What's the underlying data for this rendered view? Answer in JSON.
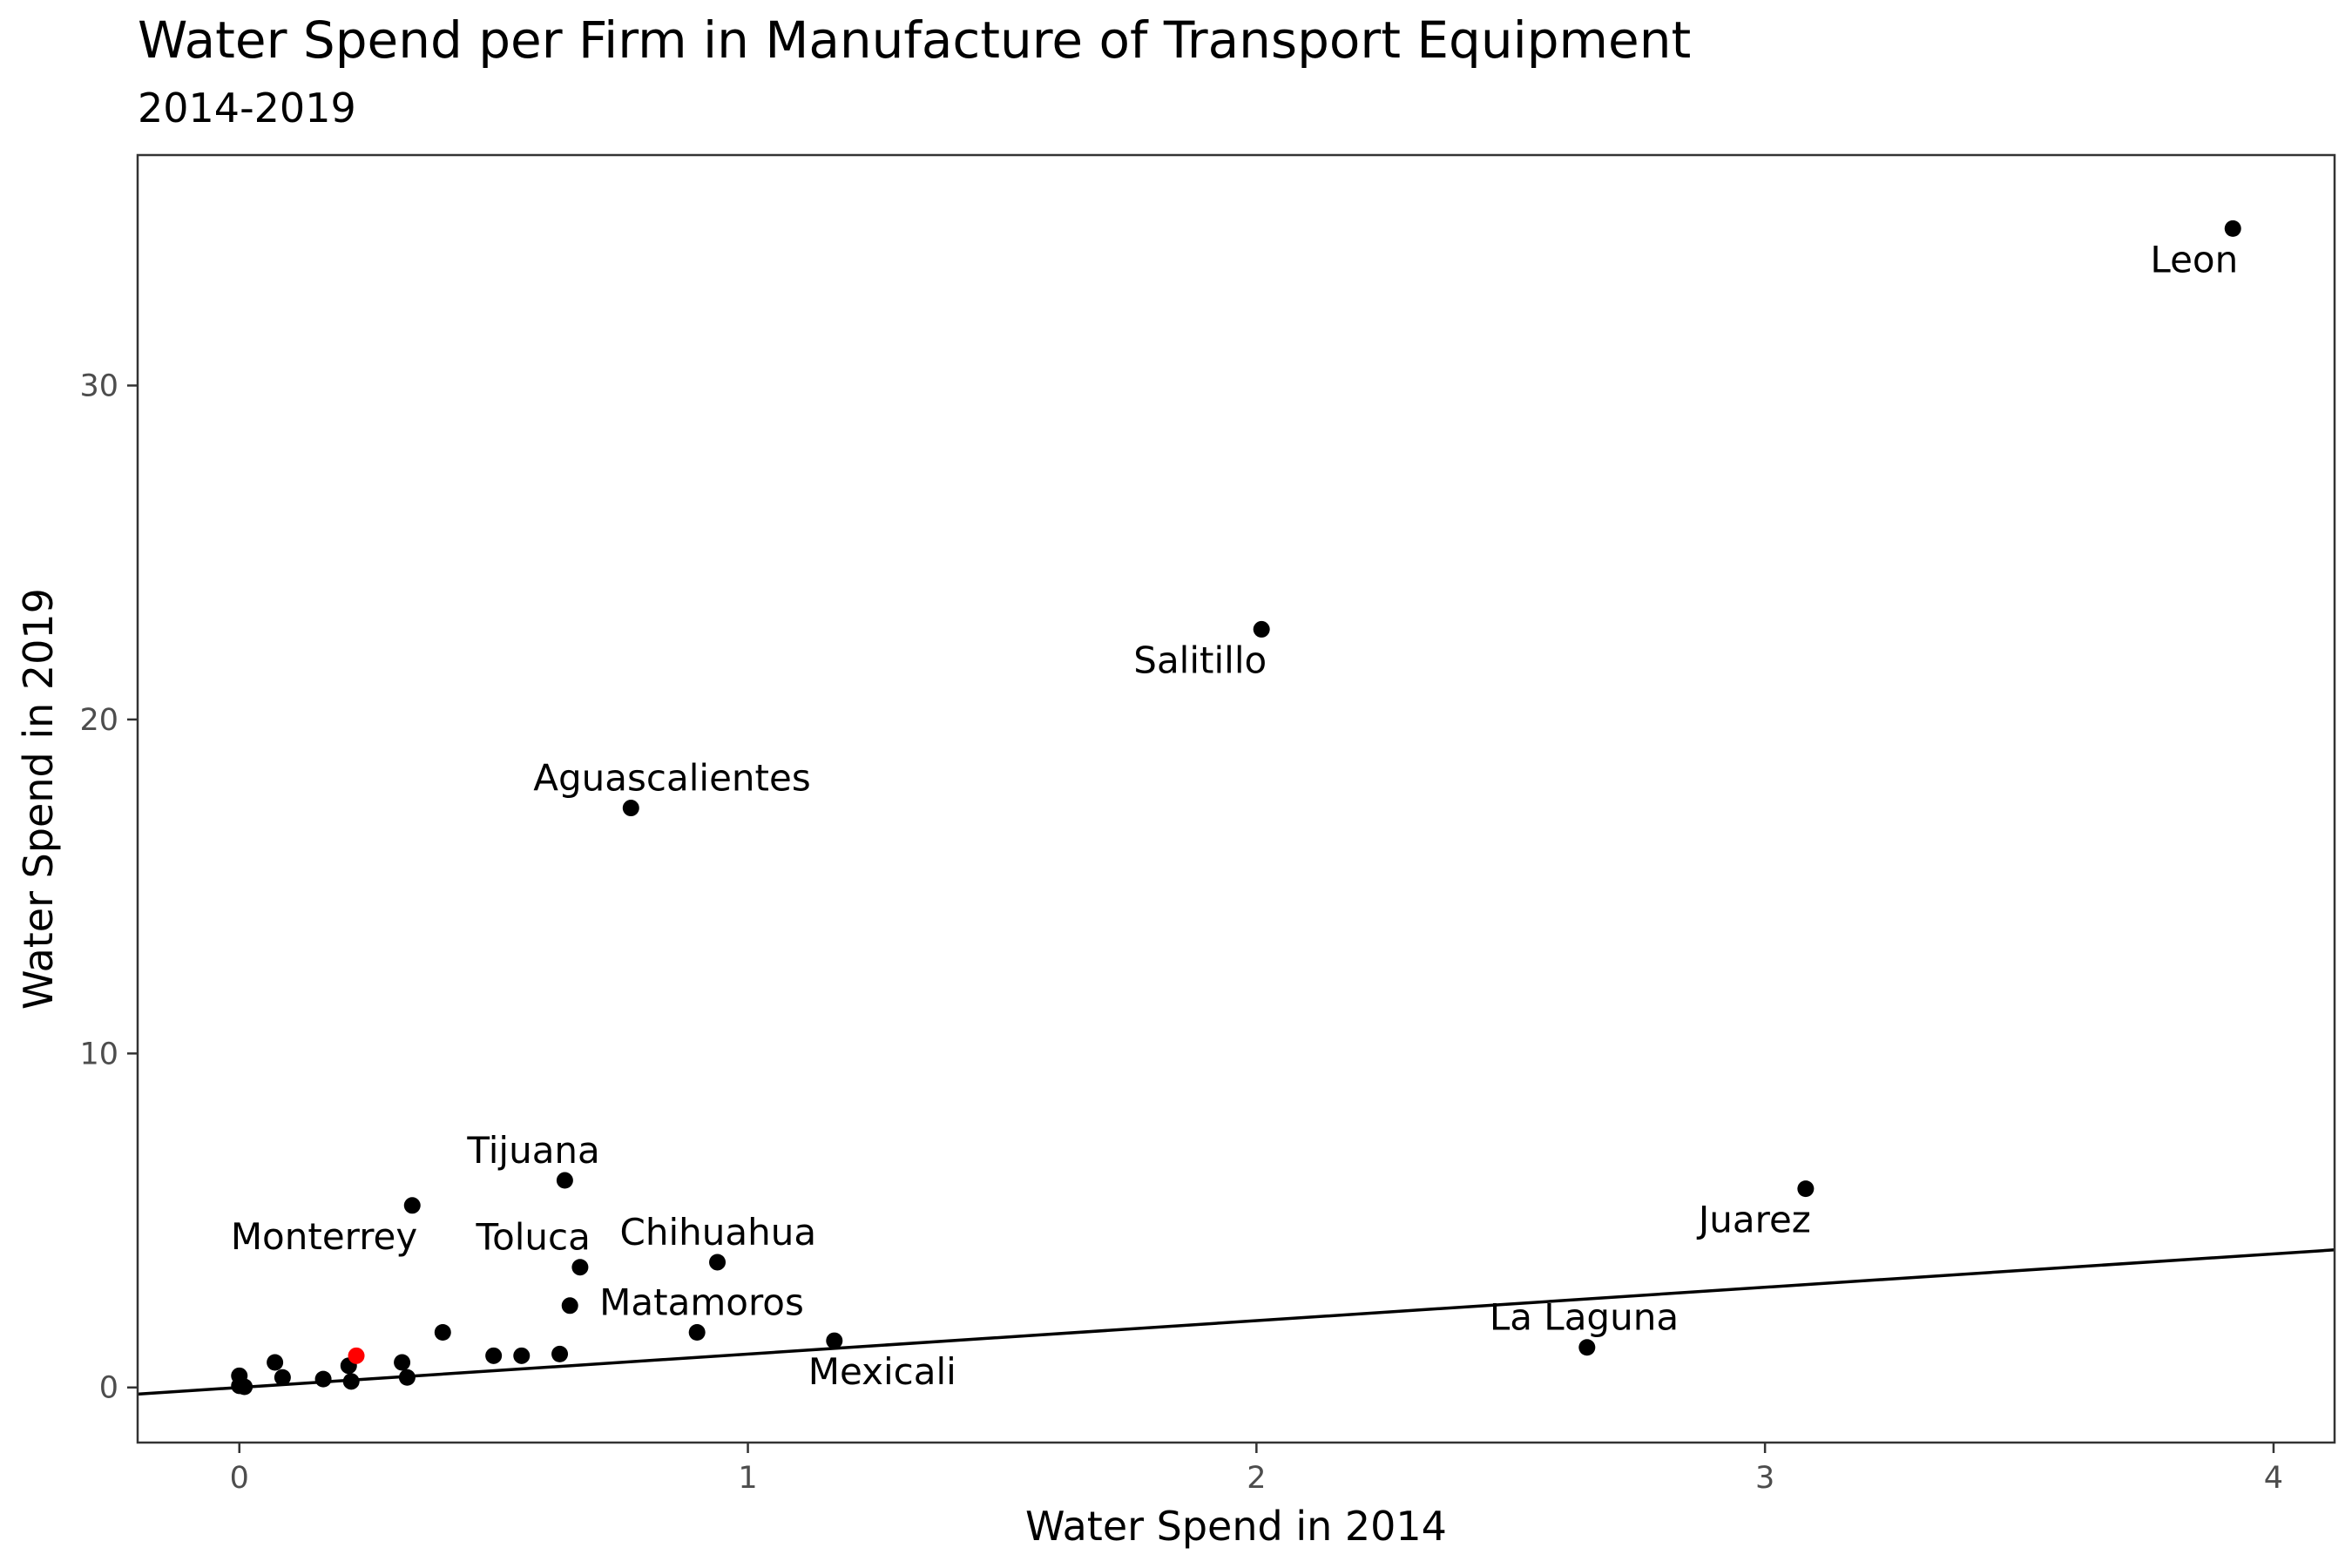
{
  "chart_data": {
    "type": "scatter",
    "title": "Water Spend per Firm in Manufacture of Transport Equipment",
    "subtitle": "2014-2019",
    "xlabel": "Water Spend in 2014",
    "ylabel": "Water Spend in 2019",
    "xlim": [
      -0.2,
      4.12
    ],
    "ylim": [
      -1.65,
      36.9
    ],
    "x_ticks": [
      "0",
      "1",
      "2",
      "3",
      "4"
    ],
    "y_ticks": [
      "0",
      "10",
      "20",
      "30"
    ],
    "grid": false,
    "reference_line": {
      "intercept": 0,
      "slope": 1
    },
    "colors": {
      "point": "#000000",
      "highlight": "#ff0000",
      "line": "#000000",
      "panel_border": "#333333"
    },
    "points": [
      {
        "x": 3.92,
        "y": 34.7,
        "label": "Leon",
        "label_pos": "below-left"
      },
      {
        "x": 2.01,
        "y": 22.7,
        "label": "Salitillo",
        "label_pos": "below-left"
      },
      {
        "x": 0.77,
        "y": 17.35,
        "label": "Aguascalientes",
        "label_pos": "above-right"
      },
      {
        "x": 0.64,
        "y": 6.2,
        "label": "Tijuana",
        "label_pos": "above-right"
      },
      {
        "x": 0.34,
        "y": 5.45,
        "label": "Monterrey",
        "label_pos": "below-left"
      },
      {
        "x": 0.67,
        "y": 3.6,
        "label": "Toluca",
        "label_pos": "above-left"
      },
      {
        "x": 0.94,
        "y": 3.75,
        "label": "Chihuahua",
        "label_pos": "above-right"
      },
      {
        "x": 0.9,
        "y": 1.65,
        "label": "Matamoros",
        "label_pos": "above-right"
      },
      {
        "x": 1.17,
        "y": 1.4,
        "label": "Mexicali",
        "label_pos": "below-right"
      },
      {
        "x": 3.08,
        "y": 5.95,
        "label": "Juarez",
        "label_pos": "below-left"
      },
      {
        "x": 2.65,
        "y": 1.2,
        "label": "La Laguna",
        "label_pos": "above-right"
      },
      {
        "x": 0.65,
        "y": 2.45
      },
      {
        "x": 0.4,
        "y": 1.65
      },
      {
        "x": 0.5,
        "y": 0.95
      },
      {
        "x": 0.555,
        "y": 0.95
      },
      {
        "x": 0.63,
        "y": 1.0
      },
      {
        "x": 0.32,
        "y": 0.75
      },
      {
        "x": 0.33,
        "y": 0.3
      },
      {
        "x": 0.07,
        "y": 0.75
      },
      {
        "x": 0.085,
        "y": 0.3
      },
      {
        "x": 0.165,
        "y": 0.25
      },
      {
        "x": 0.215,
        "y": 0.65
      },
      {
        "x": 0.22,
        "y": 0.18
      },
      {
        "x": 0.23,
        "y": 0.95,
        "highlight": true
      },
      {
        "x": 0.0,
        "y": 0.35
      },
      {
        "x": 0.0,
        "y": 0.05
      },
      {
        "x": 0.01,
        "y": 0.02
      }
    ]
  }
}
